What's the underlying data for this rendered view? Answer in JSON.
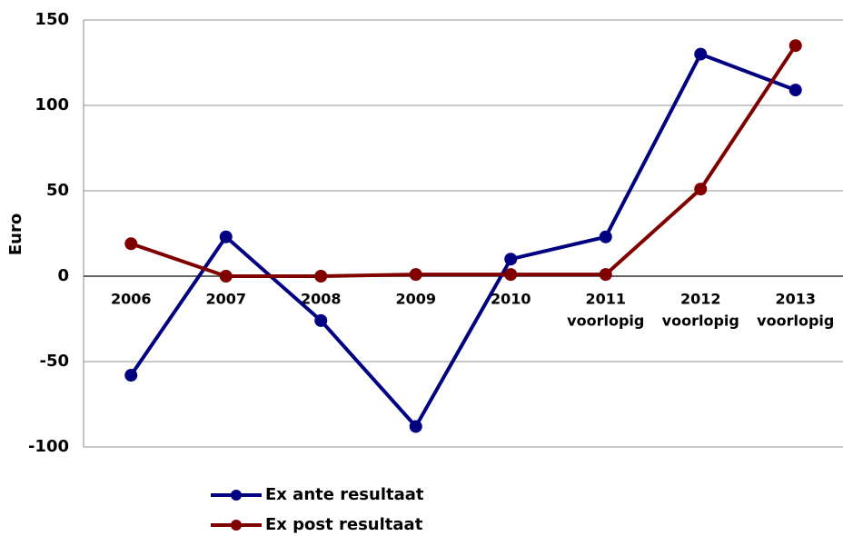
{
  "chart_data": {
    "type": "line",
    "y_label": "Euro",
    "categories": [
      [
        "2006"
      ],
      [
        "2007"
      ],
      [
        "2008"
      ],
      [
        "2009"
      ],
      [
        "2010"
      ],
      [
        "2011",
        "voorlopig"
      ],
      [
        "2012",
        "voorlopig"
      ],
      [
        "2013",
        "voorlopig"
      ]
    ],
    "series": [
      {
        "name": "Ex ante resultaat",
        "color": "#000080",
        "values": [
          -58,
          23,
          -26,
          -88,
          10,
          23,
          130,
          109
        ]
      },
      {
        "name": "Ex post resultaat",
        "color": "#800000",
        "values": [
          19,
          0,
          0,
          1,
          1,
          1,
          51,
          135
        ]
      }
    ],
    "ylim": [
      -100,
      150
    ],
    "yticks": [
      -100,
      -50,
      0,
      50,
      100,
      150
    ],
    "grid": true,
    "legend": "bottom"
  }
}
